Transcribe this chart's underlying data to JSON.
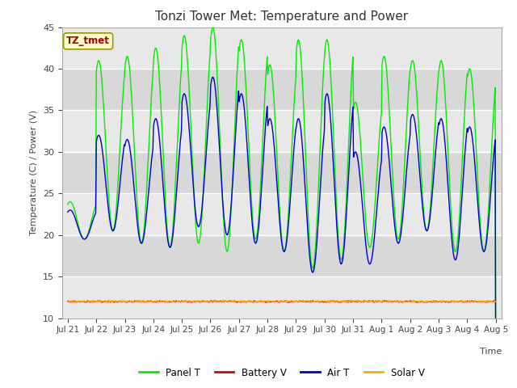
{
  "title": "Tonzi Tower Met: Temperature and Power",
  "xlabel": "Time",
  "ylabel": "Temperature (C) / Power (V)",
  "ylim": [
    10,
    45
  ],
  "bg_color": "#e8e8e8",
  "fig_color": "#ffffff",
  "grid_color": "#ffffff",
  "band_color_dark": "#d8d8d8",
  "band_color_light": "#e8e8e8",
  "tz_label": "TZ_tmet",
  "tz_label_color": "#aa0000",
  "tz_bg_color": "#ffffcc",
  "tz_border_color": "#999900",
  "legend_items": [
    "Panel T",
    "Battery V",
    "Air T",
    "Solar V"
  ],
  "panel_t_color": "#00ee00",
  "air_t_color": "#0000cc",
  "battery_v_color": "#dd0000",
  "solar_v_color": "#ffaa00",
  "yticks": [
    10,
    15,
    20,
    25,
    30,
    35,
    40,
    45
  ],
  "xtick_labels": [
    "Jul 21",
    "Jul 22",
    "Jul 23",
    "Jul 24",
    "Jul 25",
    "Jul 26",
    "Jul 27",
    "Jul 28",
    "Jul 29",
    "Jul 30",
    "Jul 31",
    "Aug 1",
    "Aug 2",
    "Aug 3",
    "Aug 4",
    "Aug 5"
  ],
  "xtick_positions": [
    0,
    1,
    2,
    3,
    4,
    5,
    6,
    7,
    8,
    9,
    10,
    11,
    12,
    13,
    14,
    15
  ],
  "panel_peaks": [
    24.0,
    41.0,
    41.5,
    42.5,
    44.0,
    45.0,
    43.5,
    40.5,
    43.5,
    43.5,
    36.0,
    41.5,
    41.0,
    41.0,
    40.0,
    39.5
  ],
  "panel_troughs": [
    19.5,
    20.5,
    19.0,
    18.5,
    19.0,
    18.0,
    19.5,
    18.0,
    16.0,
    17.0,
    18.5,
    19.5,
    20.5,
    18.0,
    18.0,
    20.0
  ],
  "air_peaks": [
    23.0,
    32.0,
    31.5,
    34.0,
    37.0,
    39.0,
    37.0,
    34.0,
    34.0,
    37.0,
    30.0,
    33.0,
    34.5,
    34.0,
    33.0,
    32.5
  ],
  "air_troughs": [
    19.5,
    20.5,
    19.0,
    18.5,
    21.0,
    20.0,
    19.0,
    18.0,
    15.5,
    16.5,
    16.5,
    19.0,
    20.5,
    17.0,
    18.0,
    23.5
  ],
  "battery_v_base": 12.0,
  "solar_v_base": 12.0,
  "n_days": 15,
  "points_per_day": 48
}
